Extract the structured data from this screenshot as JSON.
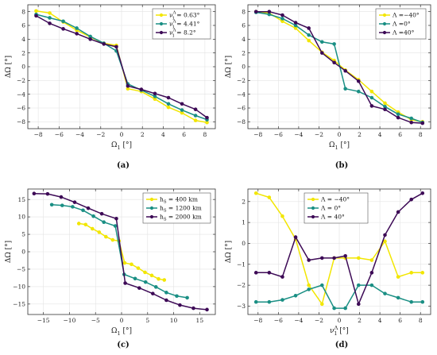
{
  "chart_data": [
    {
      "type": "line",
      "panel_label": "(a)",
      "xlabel": "Ω1 [°]",
      "ylabel": "ΔΩ [°]",
      "xlim": [
        -9,
        9
      ],
      "ylim": [
        -9,
        9
      ],
      "xticks": [
        -8,
        -6,
        -4,
        -2,
        0,
        2,
        4,
        6,
        8
      ],
      "yticks": [
        -8,
        -6,
        -4,
        -2,
        0,
        2,
        4,
        6,
        8
      ],
      "grid": true,
      "legend_position": "top-right",
      "series": [
        {
          "name": "ν1Λ = 0.63°",
          "color": "#f2e600",
          "x": [
            -8.2,
            -6.9,
            -5.6,
            -4.3,
            -3,
            -1.7,
            -0.5,
            0.6,
            1.9,
            3.2,
            4.5,
            5.8,
            7.1,
            8.2
          ],
          "y": [
            8.1,
            7.8,
            6.5,
            5.3,
            4.3,
            3.4,
            3.1,
            -3.2,
            -3.6,
            -4.7,
            -5.9,
            -6.7,
            -7.8,
            -8.1
          ]
        },
        {
          "name": "ν1Λ = 4.41°",
          "color": "#1a8f84",
          "x": [
            -8.2,
            -6.9,
            -5.6,
            -4.3,
            -3,
            -1.7,
            -0.5,
            0.6,
            1.9,
            3.2,
            4.5,
            5.8,
            7.1,
            8.2
          ],
          "y": [
            7.6,
            7.1,
            6.6,
            5.6,
            4.4,
            3.4,
            2.3,
            -2.5,
            -3.4,
            -4.3,
            -5.4,
            -6.3,
            -7.1,
            -7.7
          ]
        },
        {
          "name": "ν1Λ = 8.2°",
          "color": "#3d0a56",
          "x": [
            -8.2,
            -6.9,
            -5.6,
            -4.3,
            -3,
            -1.7,
            -0.5,
            0.6,
            1.9,
            3.2,
            4.5,
            5.8,
            7.1,
            8.2
          ],
          "y": [
            7.4,
            6.3,
            5.5,
            4.8,
            4.0,
            3.3,
            2.9,
            -2.8,
            -3.3,
            -3.9,
            -4.5,
            -5.4,
            -6.2,
            -7.4
          ]
        }
      ]
    },
    {
      "type": "line",
      "panel_label": "(b)",
      "xlabel": "Ω1 [°]",
      "ylabel": "ΔΩ [°]",
      "xlim": [
        -9,
        9
      ],
      "ylim": [
        -9,
        9
      ],
      "xticks": [
        -8,
        -6,
        -4,
        -2,
        0,
        2,
        4,
        6,
        8
      ],
      "yticks": [
        -8,
        -6,
        -4,
        -2,
        0,
        2,
        4,
        6,
        8
      ],
      "grid": true,
      "legend_position": "top-right",
      "series": [
        {
          "name": "Λ =−40°",
          "color": "#f2e600",
          "x": [
            -8.2,
            -6.9,
            -5.6,
            -4.3,
            -3,
            -1.7,
            -0.5,
            0.6,
            1.9,
            3.2,
            4.5,
            5.8,
            7.1,
            8.2
          ],
          "y": [
            8.0,
            7.8,
            6.6,
            5.6,
            3.8,
            2.1,
            0.9,
            -0.5,
            -1.9,
            -3.6,
            -5.3,
            -6.6,
            -7.7,
            -8.0
          ]
        },
        {
          "name": "Λ =0°",
          "color": "#1a8f84",
          "x": [
            -8.2,
            -6.9,
            -5.6,
            -4.3,
            -3,
            -1.7,
            -0.5,
            0.6,
            1.9,
            3.2,
            4.5,
            5.8,
            7.1,
            8.2
          ],
          "y": [
            7.9,
            7.6,
            7.0,
            6.0,
            4.6,
            3.6,
            3.3,
            -3.2,
            -3.6,
            -4.5,
            -5.8,
            -6.9,
            -7.5,
            -8.1
          ]
        },
        {
          "name": "Λ =40°",
          "color": "#3d0a56",
          "x": [
            -8.2,
            -6.9,
            -5.6,
            -4.3,
            -3,
            -1.7,
            -0.5,
            0.6,
            1.9,
            3.2,
            4.5,
            5.8,
            7.1,
            8.2
          ],
          "y": [
            8.0,
            8.0,
            7.5,
            6.4,
            5.6,
            2.0,
            0.6,
            -0.6,
            -2.1,
            -5.7,
            -6.2,
            -7.4,
            -8.1,
            -8.2
          ]
        }
      ]
    },
    {
      "type": "line",
      "panel_label": "(c)",
      "xlabel": "Ω1 [°]",
      "ylabel": "ΔΩ [°]",
      "xlim": [
        -18,
        18
      ],
      "ylim": [
        -18,
        18
      ],
      "xticks": [
        -15,
        -10,
        -5,
        0,
        5,
        10,
        15
      ],
      "yticks": [
        -15,
        -10,
        -5,
        0,
        5,
        10,
        15
      ],
      "grid": true,
      "legend_position": "top-right",
      "series": [
        {
          "name": "hS = 400 km",
          "color": "#f2e600",
          "x": [
            -8.2,
            -6.9,
            -5.6,
            -4.3,
            -3,
            -1.7,
            -0.5,
            0.6,
            1.9,
            3.2,
            4.5,
            5.8,
            7.1,
            8.2
          ],
          "y": [
            8.1,
            7.8,
            6.6,
            5.6,
            4.3,
            3.4,
            3.1,
            -3.2,
            -3.6,
            -4.7,
            -5.9,
            -6.8,
            -7.8,
            -8.1
          ]
        },
        {
          "name": "hS = 1200 km",
          "color": "#1a8f84",
          "x": [
            -13.4,
            -11.4,
            -9.4,
            -7.4,
            -5.4,
            -3.4,
            -1.2,
            0.5,
            2.6,
            4.6,
            6.6,
            8.6,
            10.6,
            12.6
          ],
          "y": [
            13.5,
            13.3,
            12.9,
            11.9,
            10.2,
            8.5,
            7.4,
            -6.5,
            -7.7,
            -8.7,
            -10.1,
            -11.7,
            -12.7,
            -13.2
          ]
        },
        {
          "name": "hS = 2000 km",
          "color": "#3d0a56",
          "x": [
            -16.8,
            -14.2,
            -11.6,
            -9.0,
            -6.4,
            -3.8,
            -1.0,
            0.7,
            3.4,
            6.0,
            8.6,
            11.2,
            13.8,
            16.4
          ],
          "y": [
            16.7,
            16.6,
            15.7,
            14.2,
            12.5,
            10.9,
            9.5,
            -9.0,
            -10.4,
            -12.0,
            -13.9,
            -15.3,
            -16.2,
            -16.6
          ]
        }
      ]
    },
    {
      "type": "line",
      "panel_label": "(d)",
      "xlabel": "ν1Λ [°]",
      "ylabel": "ΔΩ [°]",
      "xlim": [
        -9,
        9
      ],
      "ylim": [
        -3.4,
        2.6
      ],
      "xticks": [
        -8,
        -6,
        -4,
        -2,
        0,
        2,
        4,
        6,
        8
      ],
      "yticks": [
        -3,
        -2,
        -1,
        0,
        1,
        2
      ],
      "grid": true,
      "legend_position": "top-center",
      "series": [
        {
          "name": "Λ = −40°",
          "color": "#f2e600",
          "x": [
            -8.2,
            -6.9,
            -5.6,
            -4.3,
            -3,
            -1.7,
            -0.5,
            0.6,
            1.9,
            3.2,
            4.5,
            5.8,
            7.1,
            8.2
          ],
          "y": [
            2.4,
            2.2,
            1.3,
            0.2,
            -2.0,
            -2.9,
            -0.7,
            -0.7,
            -0.7,
            -0.8,
            0.1,
            -1.6,
            -1.4,
            -1.4
          ]
        },
        {
          "name": "Λ = 0°",
          "color": "#1a8f84",
          "x": [
            -8.2,
            -6.9,
            -5.6,
            -4.3,
            -3,
            -1.7,
            -0.5,
            0.6,
            1.9,
            3.2,
            4.5,
            5.8,
            7.1,
            8.2
          ],
          "y": [
            -2.8,
            -2.8,
            -2.7,
            -2.5,
            -2.2,
            -2.0,
            -3.1,
            -3.1,
            -2.0,
            -2.0,
            -2.4,
            -2.6,
            -2.8,
            -2.8
          ]
        },
        {
          "name": "Λ = 40°",
          "color": "#3d0a56",
          "x": [
            -8.2,
            -6.9,
            -5.6,
            -4.3,
            -3,
            -1.7,
            -0.5,
            0.6,
            1.9,
            3.2,
            4.5,
            5.8,
            7.1,
            8.2
          ],
          "y": [
            -1.4,
            -1.4,
            -1.6,
            0.3,
            -0.8,
            -0.7,
            -0.7,
            -0.6,
            -2.9,
            -1.4,
            0.4,
            1.5,
            2.1,
            2.4
          ]
        }
      ]
    }
  ]
}
